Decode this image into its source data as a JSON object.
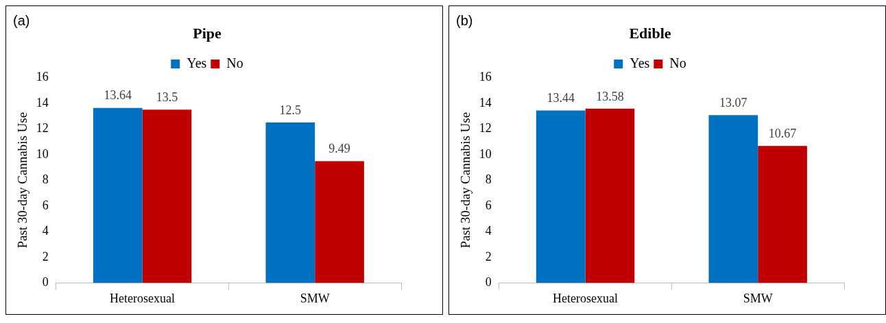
{
  "chart_data": [
    {
      "type": "bar",
      "title": "Pipe",
      "ylabel": "Past 30-day Cannabis Use",
      "annotations": [
        "(a)"
      ],
      "categories": [
        "Heterosexual",
        "SMW"
      ],
      "series": [
        {
          "name": "Yes",
          "color": "#0070c0",
          "values": [
            13.64,
            12.5
          ]
        },
        {
          "name": "No",
          "color": "#c00000",
          "values": [
            13.5,
            9.49
          ]
        }
      ],
      "ylim": [
        0,
        16
      ],
      "yticks": [
        0,
        2,
        4,
        6,
        8,
        10,
        12,
        14,
        16
      ],
      "grid": false,
      "legend": "top",
      "data_labels": true
    },
    {
      "type": "bar",
      "title": "Edible",
      "ylabel": "Past 30-day Cannabis Use",
      "annotations": [
        "(b)"
      ],
      "categories": [
        "Heterosexual",
        "SMW"
      ],
      "series": [
        {
          "name": "Yes",
          "color": "#0070c0",
          "values": [
            13.44,
            13.07
          ]
        },
        {
          "name": "No",
          "color": "#c00000",
          "values": [
            13.58,
            10.67
          ]
        }
      ],
      "ylim": [
        0,
        16
      ],
      "yticks": [
        0,
        2,
        4,
        6,
        8,
        10,
        12,
        14,
        16
      ],
      "grid": false,
      "legend": "top",
      "data_labels": true
    }
  ]
}
